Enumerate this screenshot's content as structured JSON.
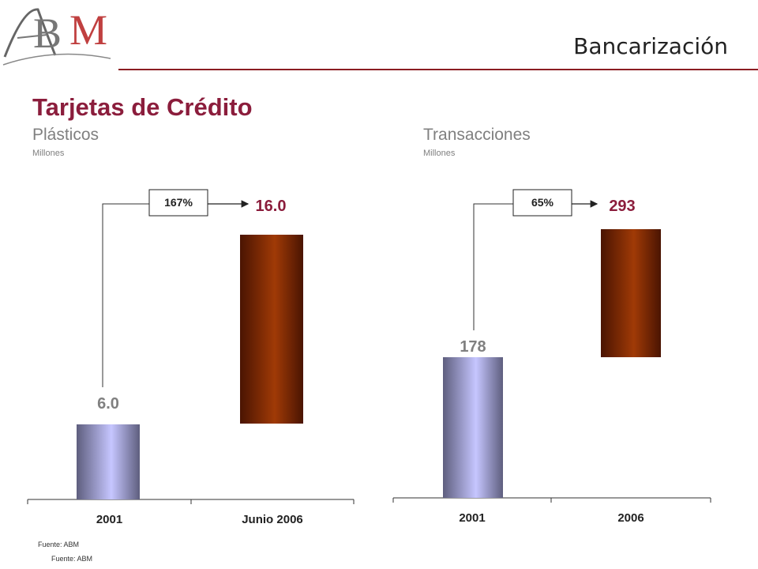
{
  "header": {
    "title": "Bancarización",
    "logo_text": "ABM",
    "accent_color": "#8b1d22"
  },
  "slide": {
    "title": "Tarjetas de Crédito",
    "title_color": "#8b1d3c"
  },
  "left_panel": {
    "subtitle": "Plásticos",
    "unit": "Millones"
  },
  "right_panel": {
    "subtitle": "Transacciones",
    "unit": "Millones"
  },
  "sources": [
    "Fuente: ABM",
    "Fuente: ABM"
  ],
  "chart_data": [
    {
      "type": "bar",
      "categories": [
        "2001",
        "Junio 2006"
      ],
      "values": [
        6.0,
        16.0
      ],
      "value_labels": [
        "6.0",
        "16.0"
      ],
      "growth_label": "167%",
      "colors": [
        "#b8b8e8",
        "#9a3208"
      ],
      "label_colors": [
        "#808080",
        "#8b1d3c"
      ],
      "bar_style": "waterfall"
    },
    {
      "type": "bar",
      "categories": [
        "2001",
        "2006"
      ],
      "values": [
        178,
        293
      ],
      "value_labels": [
        "178",
        "293"
      ],
      "growth_label": "65%",
      "colors": [
        "#b8b8e8",
        "#9a3208"
      ],
      "label_colors": [
        "#808080",
        "#8b1d3c"
      ],
      "bar_style": "waterfall"
    }
  ]
}
